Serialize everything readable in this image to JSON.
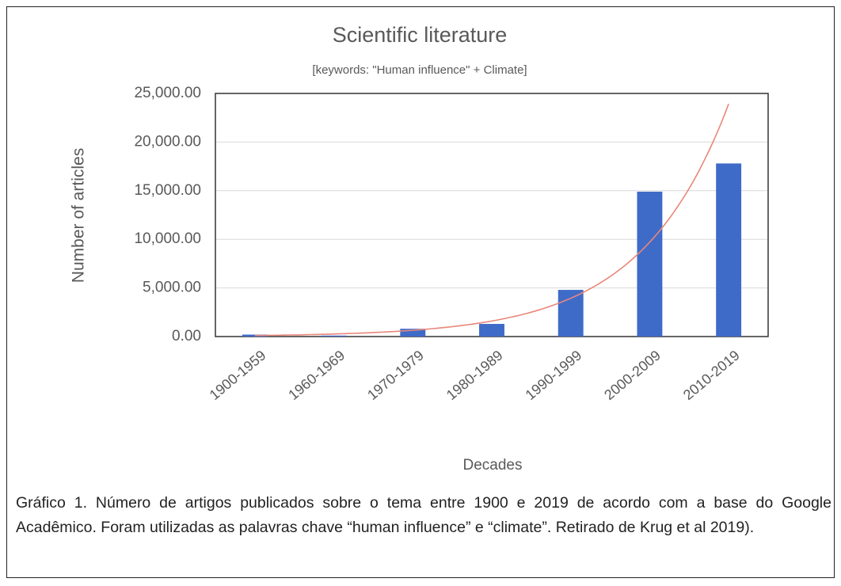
{
  "chart_data": {
    "type": "bar",
    "title": "Scientific literature",
    "subtitle": "[keywords: \"Human influence\" + Climate]",
    "x_label": "Decades",
    "y_label": "Number of articles",
    "categories": [
      "1900-1959",
      "1960-1969",
      "1970-1979",
      "1980-1989",
      "1990-1999",
      "2000-2009",
      "2010-2019"
    ],
    "values": [
      200,
      100,
      800,
      1300,
      4800,
      14900,
      17800
    ],
    "color": "#3f6bc8",
    "ylim": [
      0,
      25000
    ],
    "yticks": [
      {
        "value": 0,
        "label": "0.00"
      },
      {
        "value": 5000,
        "label": "5,000.00"
      },
      {
        "value": 10000,
        "label": "10,000.00"
      },
      {
        "value": 15000,
        "label": "15,000.00"
      },
      {
        "value": 20000,
        "label": "20,000.00"
      },
      {
        "value": 25000,
        "label": "25,000.00"
      }
    ],
    "grid": true,
    "trendline": {
      "type": "exponential",
      "color": "#e8877a"
    }
  },
  "caption": "Gráfico 1. Número de artigos publicados sobre o tema entre 1900 e 2019 de acordo com a base do Google Acadêmico. Foram utilizadas as palavras chave “human influence” e “climate”. Retirado de Krug et al 2019)."
}
